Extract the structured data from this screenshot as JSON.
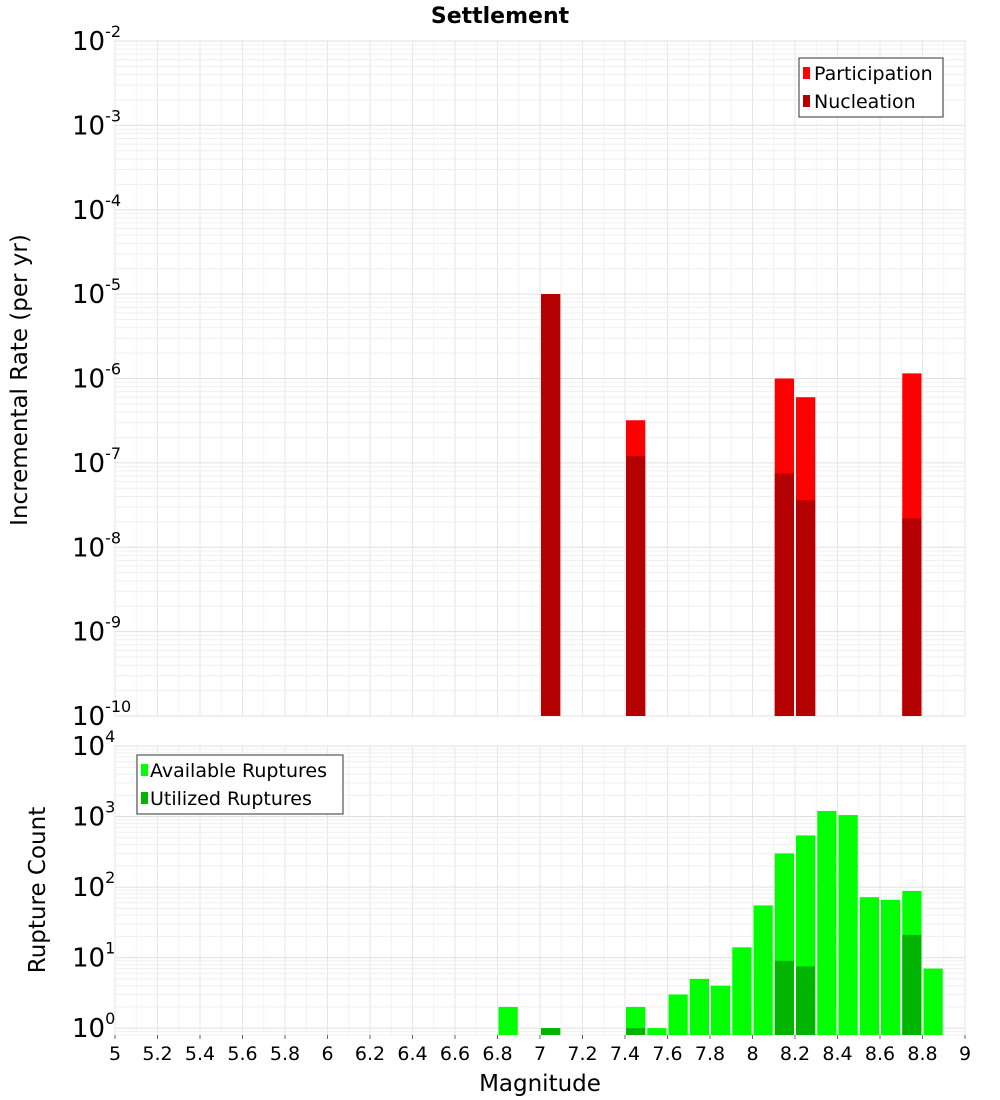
{
  "title": "Settlement",
  "chart_data": [
    {
      "type": "bar",
      "ylabel": "Incremental Rate (per yr)",
      "y_scale": "log",
      "ylim": [
        1e-10,
        0.01
      ],
      "yticks": [
        {
          "base": "10",
          "exp": "-2"
        },
        {
          "base": "10",
          "exp": "-3"
        },
        {
          "base": "10",
          "exp": "-4"
        },
        {
          "base": "10",
          "exp": "-5"
        },
        {
          "base": "10",
          "exp": "-6"
        },
        {
          "base": "10",
          "exp": "-7"
        },
        {
          "base": "10",
          "exp": "-8"
        },
        {
          "base": "10",
          "exp": "-9"
        },
        {
          "base": "10",
          "exp": "-10"
        }
      ],
      "grid": true,
      "legend_position": "top-right",
      "bar_width": 0.1,
      "series": [
        {
          "name": "Participation",
          "color": "#ff0000",
          "points": [
            {
              "x": 7.05,
              "y": 1e-05
            },
            {
              "x": 7.45,
              "y": 3.2e-07
            },
            {
              "x": 8.15,
              "y": 1e-06
            },
            {
              "x": 8.25,
              "y": 6e-07
            },
            {
              "x": 8.75,
              "y": 1.15e-06
            }
          ]
        },
        {
          "name": "Nucleation",
          "color": "#b40000",
          "points": [
            {
              "x": 7.05,
              "y": 1e-05
            },
            {
              "x": 7.45,
              "y": 1.2e-07
            },
            {
              "x": 8.15,
              "y": 7.5e-08
            },
            {
              "x": 8.25,
              "y": 3.6e-08
            },
            {
              "x": 8.75,
              "y": 2.2e-08
            }
          ]
        }
      ]
    },
    {
      "type": "bar",
      "ylabel": "Rupture Count",
      "xlabel": "Magnitude",
      "y_scale": "log",
      "ylim": [
        0.8,
        10000
      ],
      "xlim": [
        5,
        9
      ],
      "xticks": [
        "5",
        "5.2",
        "5.4",
        "5.6",
        "5.8",
        "6",
        "6.2",
        "6.4",
        "6.6",
        "6.8",
        "7",
        "7.2",
        "7.4",
        "7.6",
        "7.8",
        "8",
        "8.2",
        "8.4",
        "8.6",
        "8.8",
        "9"
      ],
      "yticks": [
        {
          "base": "10",
          "exp": "4"
        },
        {
          "base": "10",
          "exp": "3"
        },
        {
          "base": "10",
          "exp": "2"
        },
        {
          "base": "10",
          "exp": "1"
        },
        {
          "base": "10",
          "exp": "0"
        }
      ],
      "grid": true,
      "legend_position": "top-left",
      "bar_width": 0.1,
      "series": [
        {
          "name": "Available Ruptures",
          "color": "#00ff00",
          "points": [
            {
              "x": 6.85,
              "y": 2
            },
            {
              "x": 7.05,
              "y": 1
            },
            {
              "x": 7.45,
              "y": 2
            },
            {
              "x": 7.55,
              "y": 1
            },
            {
              "x": 7.65,
              "y": 3
            },
            {
              "x": 7.75,
              "y": 5
            },
            {
              "x": 7.85,
              "y": 4
            },
            {
              "x": 7.95,
              "y": 14
            },
            {
              "x": 8.05,
              "y": 55
            },
            {
              "x": 8.15,
              "y": 300
            },
            {
              "x": 8.25,
              "y": 540
            },
            {
              "x": 8.35,
              "y": 1200
            },
            {
              "x": 8.45,
              "y": 1050
            },
            {
              "x": 8.55,
              "y": 72
            },
            {
              "x": 8.65,
              "y": 66
            },
            {
              "x": 8.75,
              "y": 88
            },
            {
              "x": 8.85,
              "y": 7
            }
          ]
        },
        {
          "name": "Utilized Ruptures",
          "color": "#00b400",
          "points": [
            {
              "x": 7.05,
              "y": 1
            },
            {
              "x": 7.45,
              "y": 1
            },
            {
              "x": 8.15,
              "y": 9
            },
            {
              "x": 8.25,
              "y": 7.5
            },
            {
              "x": 8.75,
              "y": 21
            }
          ]
        }
      ]
    }
  ]
}
